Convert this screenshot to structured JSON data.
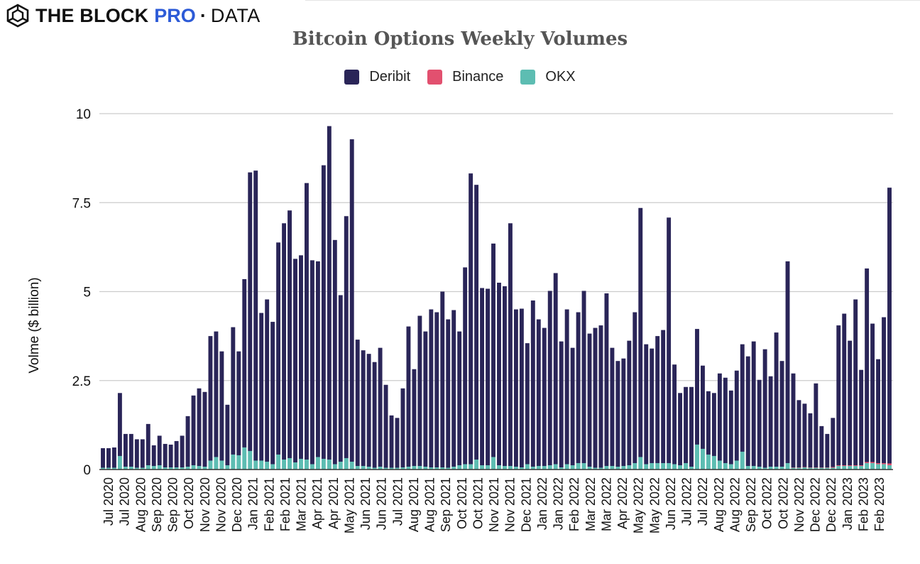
{
  "brand": {
    "name": "THE BLOCK",
    "pro": "PRO",
    "separator": "·",
    "data": "DATA",
    "pro_color": "#2d5bd7"
  },
  "chart_data": {
    "type": "bar",
    "stacked": true,
    "title": "Bitcoin Options Weekly Volumes",
    "ylabel": "Volme ($ billion)",
    "xlabel": "",
    "ylim": [
      0,
      10
    ],
    "yticks": [
      0,
      2.5,
      5,
      7.5,
      10
    ],
    "ytick_labels": [
      "0",
      "2.5",
      "5",
      "7.5",
      "10"
    ],
    "grid": true,
    "legend_position": "top-center",
    "colors": {
      "Deribit": "#2a2558",
      "Binance": "#e2506f",
      "OKX": "#5dbdb2"
    },
    "x_tick_labels": [
      "Jul 2020",
      "Jul 2020",
      "Aug 2020",
      "Sep 2020",
      "Sep 2020",
      "Oct 2020",
      "Nov 2020",
      "Nov 2020",
      "Dec 2020",
      "Jan 2021",
      "Feb 2021",
      "Feb 2021",
      "Mar 2021",
      "Apr 2021",
      "Apr 2021",
      "May 2021",
      "Jun 2021",
      "Jun 2021",
      "Jul 2021",
      "Aug 2021",
      "Aug 2021",
      "Sep 2021",
      "Oct 2021",
      "Oct 2021",
      "Nov 2021",
      "Nov 2021",
      "Dec 2021",
      "Jan 2022",
      "Jan 2022",
      "Feb 2022",
      "Mar 2022",
      "Mar 2022",
      "Apr 2022",
      "May 2022",
      "May 2022",
      "Jun 2022",
      "Jul 2022",
      "Jul 2022",
      "Aug 2022",
      "Aug 2022",
      "Sep 2022",
      "Oct 2022",
      "Oct 2022",
      "Nov 2022",
      "Dec 2022",
      "Dec 2022",
      "Jan 2023",
      "Feb 2023",
      "Feb 2023"
    ],
    "totals": [
      0.6,
      0.6,
      0.62,
      2.15,
      1.0,
      1.0,
      0.85,
      0.85,
      1.28,
      0.68,
      0.95,
      0.72,
      0.7,
      0.8,
      0.95,
      1.5,
      2.08,
      2.28,
      2.18,
      3.75,
      3.88,
      3.32,
      1.82,
      4.0,
      3.32,
      5.35,
      8.35,
      8.4,
      4.4,
      4.78,
      4.15,
      6.38,
      6.92,
      7.28,
      5.92,
      6.02,
      8.05,
      5.88,
      5.85,
      8.55,
      9.65,
      6.45,
      4.9,
      7.12,
      9.28,
      3.65,
      3.35,
      3.25,
      3.02,
      3.42,
      2.38,
      1.52,
      1.45,
      2.28,
      4.02,
      2.82,
      4.32,
      3.88,
      4.5,
      4.42,
      5.0,
      4.22,
      4.48,
      3.88,
      5.68,
      8.32,
      8.0,
      5.1,
      5.08,
      6.35,
      5.25,
      5.15,
      6.92,
      4.5,
      4.52,
      3.55,
      4.75,
      4.22,
      3.98,
      5.02,
      5.52,
      3.6,
      4.5,
      3.42,
      4.42,
      5.02,
      3.82,
      3.98,
      4.05,
      4.95,
      3.42,
      3.05,
      3.12,
      3.62,
      4.42,
      7.35,
      3.52,
      3.4,
      3.75,
      3.92,
      7.08,
      2.95,
      2.15,
      2.32,
      2.32,
      3.95,
      2.92,
      2.2,
      2.15,
      2.7,
      2.58,
      2.22,
      2.78,
      3.52,
      3.18,
      3.6,
      2.52,
      3.38,
      2.62,
      3.85,
      3.05,
      5.85,
      2.7,
      1.95,
      1.85,
      1.58,
      2.42,
      1.22,
      1.0,
      1.45,
      4.05,
      4.38,
      3.62,
      4.78,
      2.8,
      5.65,
      4.1,
      3.1,
      4.28,
      7.92
    ],
    "okx": [
      0.05,
      0.05,
      0.05,
      0.38,
      0.08,
      0.08,
      0.05,
      0.05,
      0.12,
      0.1,
      0.12,
      0.06,
      0.06,
      0.06,
      0.06,
      0.08,
      0.12,
      0.1,
      0.08,
      0.25,
      0.35,
      0.25,
      0.12,
      0.42,
      0.4,
      0.62,
      0.52,
      0.25,
      0.25,
      0.22,
      0.15,
      0.42,
      0.28,
      0.32,
      0.2,
      0.3,
      0.28,
      0.15,
      0.35,
      0.3,
      0.28,
      0.15,
      0.22,
      0.32,
      0.22,
      0.1,
      0.1,
      0.08,
      0.05,
      0.08,
      0.05,
      0.05,
      0.05,
      0.06,
      0.08,
      0.1,
      0.1,
      0.08,
      0.06,
      0.06,
      0.06,
      0.05,
      0.08,
      0.12,
      0.15,
      0.15,
      0.28,
      0.12,
      0.12,
      0.35,
      0.12,
      0.1,
      0.1,
      0.08,
      0.06,
      0.15,
      0.08,
      0.1,
      0.1,
      0.12,
      0.15,
      0.06,
      0.15,
      0.12,
      0.18,
      0.18,
      0.08,
      0.05,
      0.05,
      0.1,
      0.1,
      0.08,
      0.1,
      0.12,
      0.18,
      0.35,
      0.15,
      0.18,
      0.18,
      0.18,
      0.18,
      0.15,
      0.12,
      0.18,
      0.08,
      0.7,
      0.58,
      0.42,
      0.38,
      0.25,
      0.18,
      0.15,
      0.25,
      0.5,
      0.1,
      0.1,
      0.08,
      0.05,
      0.08,
      0.08,
      0.08,
      0.18,
      0.05,
      0.05,
      0.06,
      0.05,
      0.05,
      0.05,
      0.05,
      0.05,
      0.1,
      0.1,
      0.1,
      0.1,
      0.1,
      0.18,
      0.18,
      0.15,
      0.15,
      0.12
    ],
    "binance": [
      0,
      0,
      0,
      0,
      0,
      0,
      0,
      0,
      0,
      0,
      0,
      0,
      0,
      0,
      0,
      0,
      0,
      0,
      0,
      0,
      0,
      0,
      0,
      0,
      0,
      0,
      0,
      0,
      0,
      0,
      0,
      0,
      0,
      0,
      0,
      0,
      0,
      0,
      0,
      0,
      0,
      0,
      0,
      0,
      0,
      0,
      0,
      0,
      0,
      0,
      0,
      0,
      0,
      0,
      0,
      0,
      0,
      0,
      0,
      0,
      0,
      0,
      0,
      0,
      0,
      0,
      0,
      0,
      0,
      0,
      0,
      0,
      0,
      0,
      0,
      0,
      0,
      0,
      0,
      0,
      0,
      0,
      0,
      0,
      0,
      0,
      0,
      0,
      0,
      0,
      0,
      0,
      0,
      0,
      0,
      0,
      0,
      0,
      0,
      0,
      0,
      0,
      0,
      0,
      0,
      0,
      0,
      0,
      0,
      0,
      0,
      0,
      0,
      0,
      0,
      0,
      0,
      0,
      0,
      0,
      0,
      0,
      0.01,
      0.01,
      0.01,
      0.01,
      0.01,
      0.01,
      0.01,
      0.02,
      0.02,
      0.02,
      0.02,
      0.02,
      0.02,
      0.03,
      0.03,
      0.03,
      0.03,
      0.05
    ]
  },
  "legend": [
    {
      "label": "Deribit",
      "color": "#2a2558"
    },
    {
      "label": "Binance",
      "color": "#e2506f"
    },
    {
      "label": "OKX",
      "color": "#5dbdb2"
    }
  ]
}
